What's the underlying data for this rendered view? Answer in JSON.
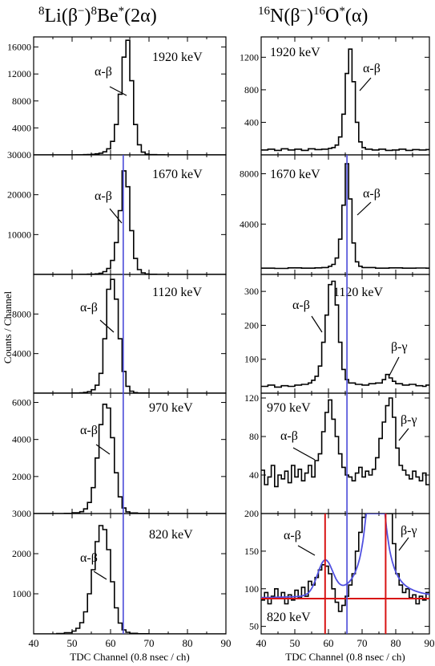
{
  "titles": {
    "left": {
      "a": "8",
      "b": "Li(β",
      "c": "−",
      "d": ")",
      "e": "8",
      "f": "Be",
      "g": "*",
      "h": "(2α)"
    },
    "right": {
      "a": "16",
      "b": "N(β",
      "c": "−",
      "d": ")",
      "e": "16",
      "f": "O",
      "g": "*",
      "h": "(α)"
    }
  },
  "ylabel": "Counts / Channel",
  "xlabel": "TDC Channel (0.8 nsec / ch)",
  "colors": {
    "histogram": "#000000",
    "marker_line": "#4a4ad8",
    "fit": "#5050e0",
    "crosshair": "#d81414"
  },
  "chart_data": [
    {
      "type": "histogram",
      "column": "left",
      "energy": "1920 keV",
      "peak_label": "α-β",
      "xlim": [
        40,
        90
      ],
      "ylim": [
        0,
        17500
      ],
      "yticks": [
        4000,
        8000,
        12000,
        16000
      ],
      "bins": [
        [
          40,
          0
        ],
        [
          44,
          0
        ],
        [
          48,
          0
        ],
        [
          51,
          10
        ],
        [
          52,
          15
        ],
        [
          53,
          30
        ],
        [
          54,
          50
        ],
        [
          55,
          80
        ],
        [
          56,
          150
        ],
        [
          57,
          250
        ],
        [
          58,
          450
        ],
        [
          59,
          900
        ],
        [
          60,
          2000
        ],
        [
          61,
          4500
        ],
        [
          62,
          9000
        ],
        [
          63,
          14500
        ],
        [
          64,
          17000
        ],
        [
          65,
          11000
        ],
        [
          66,
          4500
        ],
        [
          67,
          1500
        ],
        [
          68,
          400
        ],
        [
          69,
          120
        ],
        [
          70,
          40
        ],
        [
          72,
          10
        ],
        [
          74,
          0
        ],
        [
          90,
          0
        ]
      ]
    },
    {
      "type": "histogram",
      "column": "left",
      "energy": "1670 keV",
      "peak_label": "α-β",
      "xlim": [
        40,
        90
      ],
      "ylim": [
        0,
        30000
      ],
      "yticks": [
        10000,
        20000,
        30000
      ],
      "bins": [
        [
          40,
          0
        ],
        [
          48,
          0
        ],
        [
          52,
          20
        ],
        [
          54,
          60
        ],
        [
          56,
          150
        ],
        [
          57,
          300
        ],
        [
          58,
          700
        ],
        [
          59,
          1500
        ],
        [
          60,
          3500
        ],
        [
          61,
          8000
        ],
        [
          62,
          16000
        ],
        [
          63,
          26000
        ],
        [
          64,
          22000
        ],
        [
          65,
          11000
        ],
        [
          66,
          4000
        ],
        [
          67,
          1200
        ],
        [
          68,
          400
        ],
        [
          69,
          120
        ],
        [
          70,
          40
        ],
        [
          72,
          10
        ],
        [
          74,
          0
        ],
        [
          90,
          0
        ]
      ]
    },
    {
      "type": "histogram",
      "column": "left",
      "energy": "1120 keV",
      "peak_label": "α-β",
      "xlim": [
        40,
        90
      ],
      "ylim": [
        0,
        12000
      ],
      "yticks": [
        4000,
        8000
      ],
      "bins": [
        [
          40,
          0
        ],
        [
          46,
          0
        ],
        [
          50,
          15
        ],
        [
          52,
          40
        ],
        [
          53,
          80
        ],
        [
          54,
          160
        ],
        [
          55,
          350
        ],
        [
          56,
          800
        ],
        [
          57,
          2000
        ],
        [
          58,
          5500
        ],
        [
          59,
          10500
        ],
        [
          60,
          11500
        ],
        [
          61,
          9500
        ],
        [
          62,
          5500
        ],
        [
          63,
          2200
        ],
        [
          64,
          700
        ],
        [
          65,
          200
        ],
        [
          66,
          60
        ],
        [
          67,
          20
        ],
        [
          70,
          0
        ],
        [
          90,
          0
        ]
      ]
    },
    {
      "type": "histogram",
      "column": "left",
      "energy": "970 keV",
      "peak_label": "α-β",
      "xlim": [
        40,
        90
      ],
      "ylim": [
        0,
        6500
      ],
      "yticks": [
        2000,
        4000,
        6000
      ],
      "bins": [
        [
          40,
          0
        ],
        [
          46,
          0
        ],
        [
          48,
          10
        ],
        [
          50,
          40
        ],
        [
          52,
          100
        ],
        [
          53,
          250
        ],
        [
          54,
          600
        ],
        [
          55,
          1400
        ],
        [
          56,
          3000
        ],
        [
          57,
          4800
        ],
        [
          58,
          5900
        ],
        [
          59,
          5700
        ],
        [
          60,
          4100
        ],
        [
          61,
          2200
        ],
        [
          62,
          900
        ],
        [
          63,
          300
        ],
        [
          64,
          90
        ],
        [
          65,
          30
        ],
        [
          67,
          10
        ],
        [
          70,
          0
        ],
        [
          90,
          0
        ]
      ]
    },
    {
      "type": "histogram",
      "column": "left",
      "energy": "820 keV",
      "peak_label": "α-β",
      "xlim": [
        40,
        90
      ],
      "ylim": [
        0,
        3000
      ],
      "yticks": [
        1000,
        2000,
        3000
      ],
      "bins": [
        [
          40,
          0
        ],
        [
          44,
          0
        ],
        [
          46,
          10
        ],
        [
          48,
          30
        ],
        [
          50,
          70
        ],
        [
          51,
          140
        ],
        [
          52,
          280
        ],
        [
          53,
          550
        ],
        [
          54,
          1000
        ],
        [
          55,
          1600
        ],
        [
          56,
          2300
        ],
        [
          57,
          2700
        ],
        [
          58,
          2600
        ],
        [
          59,
          2100
        ],
        [
          60,
          1300
        ],
        [
          61,
          650
        ],
        [
          62,
          270
        ],
        [
          63,
          100
        ],
        [
          64,
          40
        ],
        [
          65,
          15
        ],
        [
          67,
          5
        ],
        [
          70,
          0
        ],
        [
          90,
          0
        ]
      ]
    },
    {
      "type": "histogram",
      "column": "right",
      "energy": "1920 keV",
      "peak_label": "α-β",
      "xlim": [
        40,
        90
      ],
      "ylim": [
        0,
        1450
      ],
      "yticks": [
        400,
        800,
        1200
      ],
      "bins": [
        [
          40,
          60
        ],
        [
          42,
          70
        ],
        [
          44,
          55
        ],
        [
          46,
          75
        ],
        [
          48,
          60
        ],
        [
          50,
          70
        ],
        [
          52,
          55
        ],
        [
          54,
          75
        ],
        [
          56,
          65
        ],
        [
          58,
          70
        ],
        [
          60,
          80
        ],
        [
          61,
          90
        ],
        [
          62,
          120
        ],
        [
          63,
          220
        ],
        [
          64,
          500
        ],
        [
          65,
          1000
        ],
        [
          66,
          1300
        ],
        [
          67,
          900
        ],
        [
          68,
          400
        ],
        [
          69,
          160
        ],
        [
          70,
          90
        ],
        [
          71,
          70
        ],
        [
          73,
          60
        ],
        [
          75,
          70
        ],
        [
          77,
          55
        ],
        [
          79,
          60
        ],
        [
          81,
          70
        ],
        [
          83,
          55
        ],
        [
          85,
          65
        ],
        [
          87,
          60
        ],
        [
          89,
          65
        ]
      ]
    },
    {
      "type": "histogram",
      "column": "right",
      "energy": "1670 keV",
      "peak_label": "α-β",
      "xlim": [
        40,
        90
      ],
      "ylim": [
        0,
        9500
      ],
      "yticks": [
        4000,
        8000
      ],
      "bins": [
        [
          40,
          500
        ],
        [
          44,
          480
        ],
        [
          48,
          520
        ],
        [
          52,
          500
        ],
        [
          56,
          520
        ],
        [
          58,
          550
        ],
        [
          60,
          650
        ],
        [
          61,
          800
        ],
        [
          62,
          1300
        ],
        [
          63,
          2800
        ],
        [
          64,
          5500
        ],
        [
          65,
          8800
        ],
        [
          66,
          6000
        ],
        [
          67,
          2500
        ],
        [
          68,
          1000
        ],
        [
          69,
          650
        ],
        [
          70,
          550
        ],
        [
          74,
          500
        ],
        [
          78,
          520
        ],
        [
          82,
          500
        ],
        [
          86,
          510
        ],
        [
          89,
          500
        ]
      ]
    },
    {
      "type": "histogram",
      "column": "right",
      "energy": "1120 keV",
      "peak_label": "α-β",
      "secondary_label": "β-γ",
      "xlim": [
        40,
        90
      ],
      "ylim": [
        0,
        350
      ],
      "yticks": [
        100,
        200,
        300
      ],
      "bins": [
        [
          40,
          20
        ],
        [
          42,
          24
        ],
        [
          44,
          18
        ],
        [
          46,
          22
        ],
        [
          48,
          20
        ],
        [
          50,
          24
        ],
        [
          52,
          26
        ],
        [
          54,
          30
        ],
        [
          55,
          38
        ],
        [
          56,
          50
        ],
        [
          57,
          80
        ],
        [
          58,
          150
        ],
        [
          59,
          230
        ],
        [
          60,
          320
        ],
        [
          61,
          330
        ],
        [
          62,
          260
        ],
        [
          63,
          150
        ],
        [
          64,
          70
        ],
        [
          65,
          40
        ],
        [
          66,
          30
        ],
        [
          68,
          26
        ],
        [
          70,
          24
        ],
        [
          72,
          28
        ],
        [
          74,
          30
        ],
        [
          76,
          40
        ],
        [
          77,
          55
        ],
        [
          78,
          45
        ],
        [
          79,
          35
        ],
        [
          80,
          28
        ],
        [
          82,
          24
        ],
        [
          84,
          26
        ],
        [
          86,
          22
        ],
        [
          88,
          20
        ],
        [
          89,
          24
        ]
      ]
    },
    {
      "type": "histogram",
      "column": "right",
      "energy": "970 keV",
      "peak_label": "α-β",
      "secondary_label": "β-γ",
      "xlim": [
        40,
        90
      ],
      "ylim": [
        0,
        125
      ],
      "yticks": [
        40,
        80,
        120
      ],
      "bins": [
        [
          40,
          45
        ],
        [
          41,
          30
        ],
        [
          42,
          38
        ],
        [
          43,
          50
        ],
        [
          44,
          28
        ],
        [
          45,
          40
        ],
        [
          46,
          36
        ],
        [
          47,
          44
        ],
        [
          48,
          32
        ],
        [
          49,
          50
        ],
        [
          50,
          38
        ],
        [
          51,
          46
        ],
        [
          52,
          34
        ],
        [
          53,
          42
        ],
        [
          54,
          50
        ],
        [
          55,
          38
        ],
        [
          56,
          55
        ],
        [
          57,
          62
        ],
        [
          58,
          85
        ],
        [
          59,
          105
        ],
        [
          60,
          118
        ],
        [
          61,
          98
        ],
        [
          62,
          80
        ],
        [
          63,
          62
        ],
        [
          64,
          48
        ],
        [
          65,
          40
        ],
        [
          66,
          38
        ],
        [
          67,
          34
        ],
        [
          68,
          42
        ],
        [
          69,
          48
        ],
        [
          70,
          38
        ],
        [
          71,
          44
        ],
        [
          72,
          40
        ],
        [
          73,
          46
        ],
        [
          74,
          58
        ],
        [
          75,
          78
        ],
        [
          76,
          95
        ],
        [
          77,
          112
        ],
        [
          78,
          120
        ],
        [
          79,
          100
        ],
        [
          80,
          68
        ],
        [
          81,
          50
        ],
        [
          82,
          45
        ],
        [
          83,
          40
        ],
        [
          84,
          36
        ],
        [
          85,
          44
        ],
        [
          86,
          38
        ],
        [
          87,
          34
        ],
        [
          88,
          42
        ],
        [
          89,
          30
        ]
      ]
    },
    {
      "type": "histogram",
      "column": "right",
      "energy": "820 keV",
      "peak_label": "α-β",
      "secondary_label": "β-γ",
      "xlim": [
        40,
        90
      ],
      "ylim": [
        40,
        200
      ],
      "yticks": [
        50,
        100,
        150,
        200
      ],
      "fit_curve": true,
      "crosshair_x": [
        59,
        77
      ],
      "crosshair_y": 87,
      "bins": [
        [
          40,
          85
        ],
        [
          41,
          95
        ],
        [
          42,
          80
        ],
        [
          43,
          90
        ],
        [
          44,
          100
        ],
        [
          45,
          88
        ],
        [
          46,
          95
        ],
        [
          47,
          80
        ],
        [
          48,
          92
        ],
        [
          49,
          85
        ],
        [
          50,
          98
        ],
        [
          51,
          88
        ],
        [
          52,
          102
        ],
        [
          53,
          90
        ],
        [
          54,
          110
        ],
        [
          55,
          105
        ],
        [
          56,
          115
        ],
        [
          57,
          125
        ],
        [
          58,
          132
        ],
        [
          59,
          130
        ],
        [
          60,
          120
        ],
        [
          61,
          100
        ],
        [
          62,
          82
        ],
        [
          63,
          70
        ],
        [
          64,
          78
        ],
        [
          65,
          90
        ],
        [
          66,
          105
        ],
        [
          67,
          120
        ],
        [
          68,
          150
        ],
        [
          69,
          175
        ],
        [
          70,
          195
        ],
        [
          71,
          200
        ],
        [
          72,
          200
        ],
        [
          73,
          200
        ],
        [
          74,
          200
        ],
        [
          75,
          200
        ],
        [
          76,
          200
        ],
        [
          77,
          200
        ],
        [
          78,
          200
        ],
        [
          79,
          160
        ],
        [
          80,
          120
        ],
        [
          81,
          105
        ],
        [
          82,
          95
        ],
        [
          83,
          100
        ],
        [
          84,
          88
        ],
        [
          85,
          92
        ],
        [
          86,
          80
        ],
        [
          87,
          90
        ],
        [
          88,
          85
        ],
        [
          89,
          95
        ]
      ]
    }
  ]
}
